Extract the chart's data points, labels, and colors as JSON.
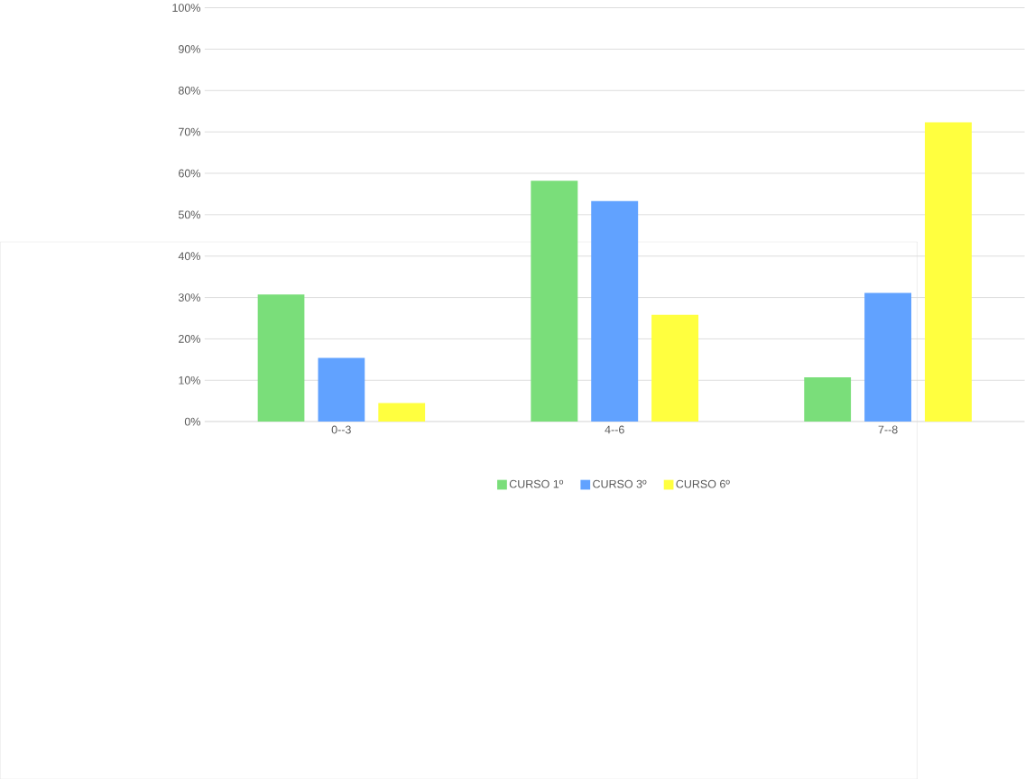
{
  "chart_data": {
    "type": "bar",
    "categories": [
      "0--3",
      "4--6",
      "7--8"
    ],
    "series": [
      {
        "name": "CURSO 1º",
        "color": "#7ade7a",
        "values": [
          30.7,
          58.2,
          10.7
        ]
      },
      {
        "name": "CURSO 3º",
        "color": "#61a2ff",
        "values": [
          15.4,
          53.3,
          31.1
        ]
      },
      {
        "name": "CURSO 6º",
        "color": "#ffff3f",
        "values": [
          4.5,
          25.8,
          72.3
        ]
      }
    ],
    "ylim": [
      0,
      100
    ],
    "yticks": [
      {
        "value": 0,
        "label": "0%"
      },
      {
        "value": 10,
        "label": "10%"
      },
      {
        "value": 20,
        "label": "20%"
      },
      {
        "value": 30,
        "label": "30%"
      },
      {
        "value": 40,
        "label": "40%"
      },
      {
        "value": 50,
        "label": "50%"
      },
      {
        "value": 60,
        "label": "60%"
      },
      {
        "value": 70,
        "label": "70%"
      },
      {
        "value": 80,
        "label": "80%"
      },
      {
        "value": 90,
        "label": "90%"
      },
      {
        "value": 100,
        "label": "100%"
      }
    ],
    "grid": "y",
    "legend": "bottom"
  }
}
